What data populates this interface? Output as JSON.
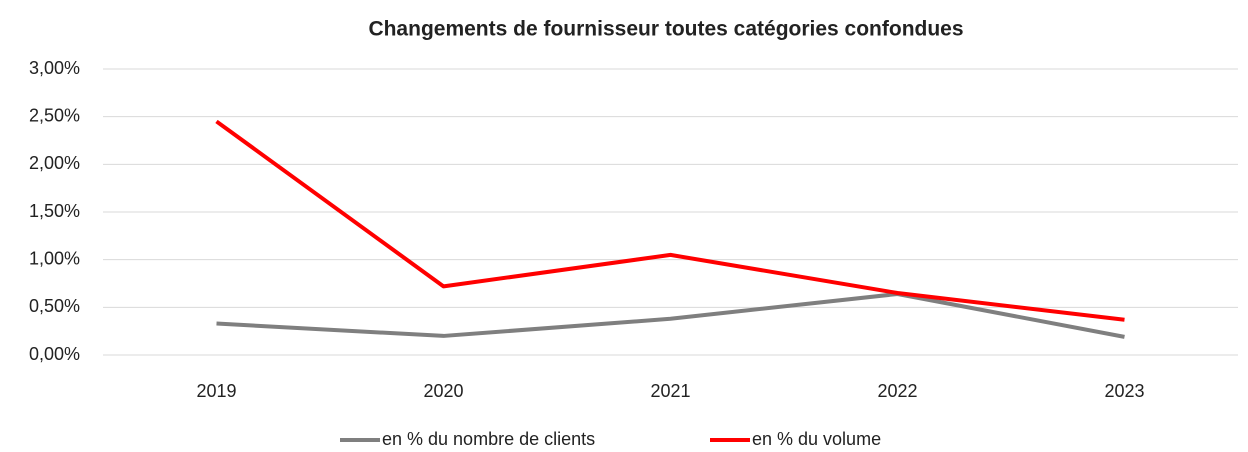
{
  "chart_data": {
    "type": "line",
    "title": "Changements de fournisseur toutes catégories confondues",
    "categories": [
      "2019",
      "2020",
      "2021",
      "2022",
      "2023"
    ],
    "series": [
      {
        "name": "en % du nombre de clients",
        "color": "#7f7f7f",
        "values": [
          0.33,
          0.2,
          0.38,
          0.64,
          0.19
        ]
      },
      {
        "name": "en % du volume",
        "color": "#ff0000",
        "values": [
          2.45,
          0.72,
          1.05,
          0.65,
          0.37
        ]
      }
    ],
    "ylim": [
      0,
      3
    ],
    "yticks": [
      {
        "value": 0,
        "label": "0,00%"
      },
      {
        "value": 0.5,
        "label": "0,50%"
      },
      {
        "value": 1,
        "label": "1,00%"
      },
      {
        "value": 1.5,
        "label": "1,50%"
      },
      {
        "value": 2,
        "label": "2,00%"
      },
      {
        "value": 2.5,
        "label": "2,50%"
      },
      {
        "value": 3,
        "label": "3,00%"
      }
    ],
    "grid": true,
    "legend": "bottom"
  }
}
